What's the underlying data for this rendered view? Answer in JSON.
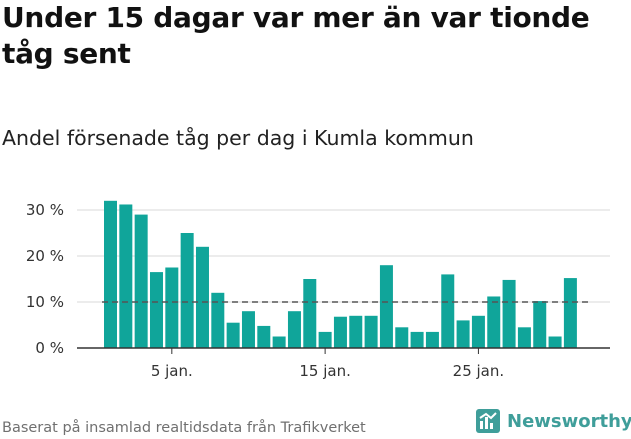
{
  "title": "Under 15 dagar var mer än var tionde tåg sent",
  "subtitle": "Andel försenade tåg per dag i Kumla kommun",
  "footer": "Baserat på insamlad realtidsdata från Trafikverket",
  "brand": {
    "name": "Newsworthy",
    "icon": "newsworthy-logo-icon"
  },
  "colors": {
    "bar": "#10a59a",
    "reference_line": "#555555",
    "grid": "#d9d9d9",
    "axis": "#333333"
  },
  "chart_data": {
    "type": "bar",
    "x": [
      "1 jan.",
      "2 jan.",
      "3 jan.",
      "4 jan.",
      "5 jan.",
      "6 jan.",
      "7 jan.",
      "8 jan.",
      "9 jan.",
      "10 jan.",
      "11 jan.",
      "12 jan.",
      "13 jan.",
      "14 jan.",
      "15 jan.",
      "16 jan.",
      "17 jan.",
      "18 jan.",
      "19 jan.",
      "20 jan.",
      "21 jan.",
      "22 jan.",
      "23 jan.",
      "24 jan.",
      "25 jan.",
      "26 jan.",
      "27 jan.",
      "28 jan.",
      "29 jan.",
      "30 jan.",
      "31 jan."
    ],
    "values": [
      32,
      31.2,
      29,
      16.5,
      17.5,
      25,
      22,
      12,
      5.5,
      8,
      4.8,
      2.5,
      8,
      15,
      3.5,
      6.8,
      7,
      7,
      18,
      4.5,
      3.5,
      3.5,
      16,
      6,
      7,
      11.2,
      14.8,
      4.5,
      10.2,
      2.5,
      15.2
    ],
    "x_ticks": [
      {
        "label": "5 jan.",
        "index": 4
      },
      {
        "label": "15 jan.",
        "index": 14
      },
      {
        "label": "25 jan.",
        "index": 24
      }
    ],
    "y_ticks": [
      {
        "label": "0 %",
        "value": 0
      },
      {
        "label": "10 %",
        "value": 10
      },
      {
        "label": "20 %",
        "value": 20
      },
      {
        "label": "30 %",
        "value": 30
      }
    ],
    "ylim": [
      0,
      33
    ],
    "reference_line": 10,
    "grid": "horizontal",
    "legend": "none"
  }
}
